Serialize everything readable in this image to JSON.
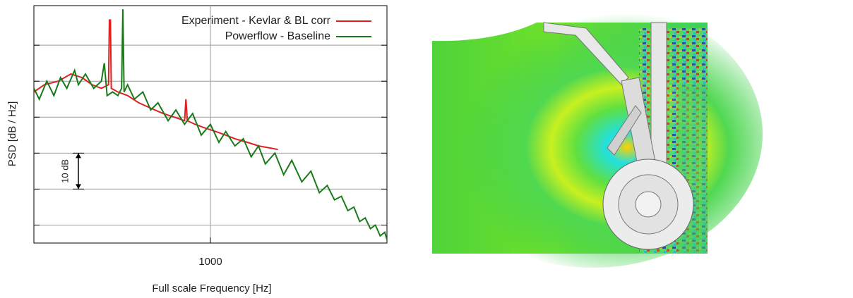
{
  "chart_data": {
    "type": "line",
    "xlabel": "Full scale Frequency [Hz]",
    "ylabel": "PSD [dB / Hz]",
    "xscale": "log",
    "xlim": [
      200,
      5000
    ],
    "xticks": [
      1000
    ],
    "ylim": [
      0,
      66
    ],
    "yticks": [
      5,
      15,
      25,
      35,
      45,
      55
    ],
    "ytick_labels": false,
    "grid": true,
    "legend": "upper right",
    "annotation": {
      "text": "10 dB",
      "x": 300,
      "y_from": 15,
      "y_to": 25
    },
    "series": [
      {
        "name": "Experiment - Kevlar & BL corr",
        "color": "#e02020",
        "x": [
          200,
          220,
          250,
          280,
          310,
          340,
          370,
          395,
          398,
          402,
          405,
          430,
          470,
          520,
          580,
          650,
          720,
          790,
          800,
          810,
          870,
          950,
          1050,
          1150,
          1250,
          1400,
          1550,
          1700,
          1850
        ],
        "values": [
          42,
          44,
          45,
          47,
          46,
          44,
          43,
          44,
          62,
          62,
          43,
          42,
          41,
          39,
          37.5,
          36,
          35,
          34,
          40,
          34,
          33,
          32,
          31,
          30,
          29,
          28,
          27,
          26.5,
          26
        ]
      },
      {
        "name": "Powerflow - Baseline",
        "color": "#1a7a1a",
        "x": [
          200,
          210,
          225,
          240,
          255,
          270,
          290,
          300,
          320,
          345,
          370,
          380,
          390,
          410,
          430,
          445,
          450,
          455,
          470,
          500,
          540,
          580,
          620,
          680,
          730,
          790,
          850,
          920,
          1000,
          1080,
          1150,
          1250,
          1350,
          1450,
          1550,
          1650,
          1800,
          1950,
          2100,
          2300,
          2500,
          2700,
          2900,
          3100,
          3300,
          3500,
          3700,
          3900,
          4100,
          4300,
          4500,
          4700,
          4900,
          5000
        ],
        "values": [
          43,
          40,
          45,
          41,
          46,
          43,
          48,
          44,
          47,
          43,
          45,
          50,
          41,
          42,
          41,
          43,
          65,
          42,
          44,
          40,
          42,
          37,
          39,
          34,
          37,
          33,
          36,
          30,
          33,
          28,
          31,
          27,
          29,
          24,
          27,
          22,
          25,
          19,
          23,
          17,
          20,
          14,
          16,
          12,
          13,
          9,
          10,
          6,
          7,
          4,
          5,
          2,
          3,
          1
        ]
      }
    ]
  }
}
